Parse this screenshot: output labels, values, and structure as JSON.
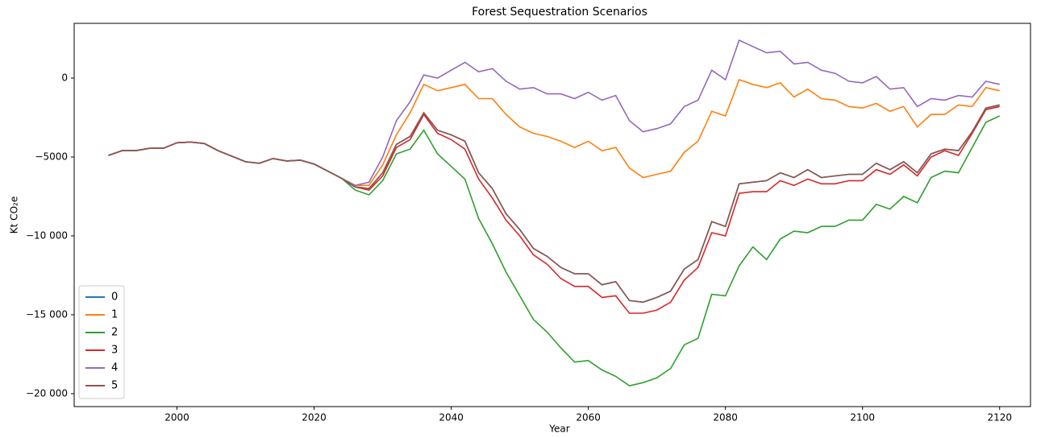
{
  "chart_data": {
    "type": "line",
    "title": "Forest Sequestration Scenarios",
    "xlabel": "Year",
    "ylabel": "Kt CO₂e",
    "x": [
      1990,
      1992,
      1994,
      1996,
      1998,
      2000,
      2002,
      2004,
      2006,
      2008,
      2010,
      2012,
      2014,
      2016,
      2018,
      2020,
      2022,
      2024,
      2026,
      2028,
      2030,
      2032,
      2034,
      2036,
      2038,
      2040,
      2042,
      2044,
      2046,
      2048,
      2050,
      2052,
      2054,
      2056,
      2058,
      2060,
      2062,
      2064,
      2066,
      2068,
      2070,
      2072,
      2074,
      2076,
      2078,
      2080,
      2082,
      2084,
      2086,
      2088,
      2090,
      2092,
      2094,
      2096,
      2098,
      2100,
      2102,
      2104,
      2106,
      2108,
      2110,
      2112,
      2114,
      2116,
      2118,
      2120
    ],
    "series": [
      {
        "name": "0",
        "color": "#1f77b4",
        "values": [
          -4900,
          -4600,
          -4600,
          -4450,
          -4450,
          -4100,
          -4050,
          -4150,
          -4600,
          -4950,
          -5300,
          -5400,
          -5100,
          -5250,
          -5200,
          -5450,
          -5900,
          -6350,
          -6900,
          -7000,
          -6000,
          -4200,
          -3700,
          -2200,
          -3300,
          -3600,
          -4000,
          -6000,
          -7000,
          -8600,
          -9600,
          -10800,
          -11300,
          -12000,
          -12400,
          -12400,
          -13100,
          -12900,
          -14100,
          -14200,
          -13900,
          -13500,
          -12100,
          -11500,
          -9100,
          -9400,
          -6700,
          -6600,
          -6500,
          -6000,
          -6300,
          -5800,
          -6300,
          -6200,
          -6100,
          -6100,
          -5400,
          -5800,
          -5300,
          -6000,
          -4800,
          -4500,
          -4600,
          -3400,
          -1900,
          -1700
        ]
      },
      {
        "name": "1",
        "color": "#ff7f0e",
        "values": [
          -4900,
          -4600,
          -4600,
          -4450,
          -4450,
          -4100,
          -4050,
          -4150,
          -4600,
          -4950,
          -5300,
          -5400,
          -5100,
          -5250,
          -5200,
          -5450,
          -5900,
          -6350,
          -6800,
          -6800,
          -5500,
          -3600,
          -2200,
          -400,
          -800,
          -600,
          -400,
          -1300,
          -1300,
          -2300,
          -3100,
          -3500,
          -3700,
          -4000,
          -4400,
          -4000,
          -4600,
          -4400,
          -5700,
          -6300,
          -6100,
          -5900,
          -4700,
          -4000,
          -2100,
          -2400,
          -100,
          -400,
          -600,
          -300,
          -1200,
          -700,
          -1300,
          -1400,
          -1800,
          -1900,
          -1600,
          -2100,
          -1800,
          -3100,
          -2300,
          -2300,
          -1700,
          -1800,
          -600,
          -800
        ]
      },
      {
        "name": "2",
        "color": "#2ca02c",
        "values": [
          -4900,
          -4600,
          -4600,
          -4450,
          -4450,
          -4100,
          -4050,
          -4150,
          -4600,
          -4950,
          -5300,
          -5400,
          -5100,
          -5250,
          -5200,
          -5450,
          -5900,
          -6350,
          -7100,
          -7400,
          -6500,
          -4800,
          -4500,
          -3300,
          -4800,
          -5600,
          -6400,
          -8900,
          -10500,
          -12300,
          -13800,
          -15300,
          -16100,
          -17100,
          -18000,
          -17900,
          -18500,
          -18900,
          -19500,
          -19300,
          -19000,
          -18400,
          -16900,
          -16500,
          -13700,
          -13800,
          -11900,
          -10700,
          -11500,
          -10200,
          -9700,
          -9800,
          -9400,
          -9400,
          -9000,
          -9000,
          -8000,
          -8300,
          -7500,
          -7900,
          -6300,
          -5900,
          -6000,
          -4400,
          -2800,
          -2400
        ]
      },
      {
        "name": "3",
        "color": "#d62728",
        "values": [
          -4900,
          -4600,
          -4600,
          -4450,
          -4450,
          -4100,
          -4050,
          -4150,
          -4600,
          -4950,
          -5300,
          -5400,
          -5100,
          -5250,
          -5200,
          -5450,
          -5900,
          -6350,
          -6900,
          -7100,
          -6200,
          -4400,
          -3900,
          -2300,
          -3500,
          -3900,
          -4500,
          -6400,
          -7600,
          -9000,
          -10000,
          -11200,
          -11800,
          -12700,
          -13200,
          -13200,
          -13900,
          -13800,
          -14900,
          -14900,
          -14700,
          -14200,
          -12800,
          -12000,
          -9800,
          -10000,
          -7300,
          -7200,
          -7200,
          -6500,
          -6800,
          -6400,
          -6700,
          -6700,
          -6500,
          -6500,
          -5800,
          -6100,
          -5500,
          -6200,
          -5000,
          -4600,
          -4900,
          -3500,
          -2000,
          -1800
        ]
      },
      {
        "name": "4",
        "color": "#9467bd",
        "values": [
          -4900,
          -4600,
          -4600,
          -4450,
          -4450,
          -4100,
          -4050,
          -4150,
          -4600,
          -4950,
          -5300,
          -5400,
          -5100,
          -5250,
          -5200,
          -5450,
          -5900,
          -6350,
          -6800,
          -6600,
          -5000,
          -2700,
          -1500,
          200,
          0,
          500,
          1000,
          400,
          600,
          -200,
          -700,
          -600,
          -1000,
          -1000,
          -1300,
          -900,
          -1400,
          -1100,
          -2700,
          -3400,
          -3200,
          -2900,
          -1800,
          -1400,
          500,
          -100,
          2400,
          2000,
          1600,
          1700,
          900,
          1000,
          500,
          300,
          -200,
          -300,
          100,
          -700,
          -600,
          -1800,
          -1300,
          -1400,
          -1100,
          -1200,
          -200,
          -400
        ]
      },
      {
        "name": "5",
        "color": "#8c564b",
        "values": [
          -4900,
          -4600,
          -4600,
          -4450,
          -4450,
          -4100,
          -4050,
          -4150,
          -4600,
          -4950,
          -5300,
          -5400,
          -5100,
          -5250,
          -5200,
          -5450,
          -5900,
          -6350,
          -6900,
          -7000,
          -6000,
          -4200,
          -3700,
          -2200,
          -3300,
          -3600,
          -4000,
          -6000,
          -7000,
          -8600,
          -9600,
          -10800,
          -11300,
          -12000,
          -12400,
          -12400,
          -13100,
          -12900,
          -14100,
          -14200,
          -13900,
          -13500,
          -12100,
          -11500,
          -9100,
          -9400,
          -6700,
          -6600,
          -6500,
          -6000,
          -6300,
          -5800,
          -6300,
          -6200,
          -6100,
          -6100,
          -5400,
          -5800,
          -5300,
          -6000,
          -4800,
          -4500,
          -4600,
          -3400,
          -1900,
          -1700
        ]
      }
    ],
    "xlim": [
      1985,
      2124.5
    ],
    "ylim": [
      -20820,
      3470
    ],
    "xticks": [
      2000,
      2020,
      2040,
      2060,
      2080,
      2100,
      2120
    ],
    "yticks": [
      {
        "value": -20000,
        "label": "−20 000"
      },
      {
        "value": -15000,
        "label": "−15 000"
      },
      {
        "value": -10000,
        "label": "−10 000"
      },
      {
        "value": -5000,
        "label": "−5000"
      },
      0
    ],
    "grid": false,
    "legend": "lower left"
  }
}
